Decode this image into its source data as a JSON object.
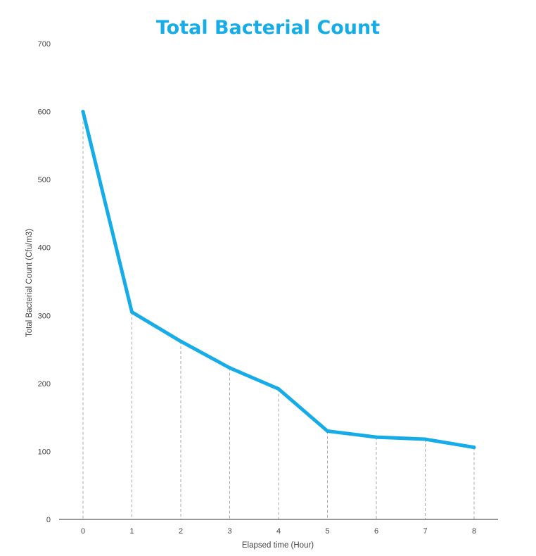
{
  "chart_data": {
    "type": "line",
    "title": "Total Bacterial Count",
    "xlabel": "Elapsed time (Hour)",
    "ylabel": "Total Bacterial Count  (Cfu/m3)",
    "x": [
      0,
      1,
      2,
      3,
      4,
      5,
      6,
      7,
      8
    ],
    "series": [
      {
        "values": [
          600,
          305,
          262,
          223,
          192,
          130,
          121,
          118,
          106
        ]
      }
    ],
    "ylim": [
      0,
      700
    ],
    "yticks": [
      0,
      100,
      200,
      300,
      400,
      500,
      600,
      700
    ],
    "xticks": [
      "0",
      "1",
      "2",
      "3",
      "4",
      "5",
      "6",
      "7",
      "8"
    ],
    "grid": false,
    "drop_lines": true,
    "line_color": "#15ACE8",
    "title_color": "#15ACE8"
  }
}
